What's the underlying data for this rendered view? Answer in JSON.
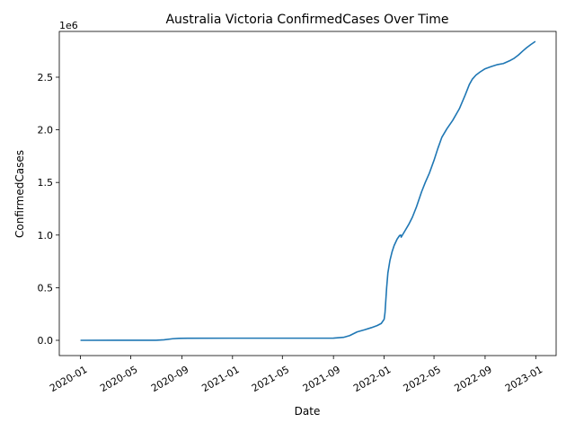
{
  "chart_data": {
    "type": "line",
    "title": "Australia Victoria ConfirmedCases Over Time",
    "xlabel": "Date",
    "ylabel": "ConfirmedCases",
    "y_offset_label": "1e6",
    "grid": false,
    "legend": "none",
    "ylim": [
      -0.145,
      2.935
    ],
    "xlim": [
      "2019-11-11",
      "2023-02-19"
    ],
    "x_ticks": [
      "2020-01",
      "2020-05",
      "2020-09",
      "2021-01",
      "2021-05",
      "2021-09",
      "2022-01",
      "2022-05",
      "2022-09",
      "2023-01"
    ],
    "y_ticks": [
      0.0,
      0.5,
      1.0,
      1.5,
      2.0,
      2.5
    ],
    "y_tick_labels": [
      "0.0",
      "0.5",
      "1.0",
      "1.5",
      "2.0",
      "2.5"
    ],
    "series": [
      {
        "color": "#1f77b4",
        "x": [
          "2020-01-01",
          "2020-07-01",
          "2020-07-20",
          "2020-08-10",
          "2020-08-25",
          "2020-09-15",
          "2021-09-01",
          "2021-09-25",
          "2021-10-10",
          "2021-10-28",
          "2021-11-15",
          "2021-12-01",
          "2021-12-15",
          "2021-12-25",
          "2022-01-01",
          "2022-01-03",
          "2022-01-05",
          "2022-01-07",
          "2022-01-10",
          "2022-01-15",
          "2022-01-20",
          "2022-01-25",
          "2022-02-01",
          "2022-02-07",
          "2022-02-10",
          "2022-02-11",
          "2022-02-20",
          "2022-03-01",
          "2022-03-10",
          "2022-03-20",
          "2022-04-01",
          "2022-04-10",
          "2022-04-20",
          "2022-05-01",
          "2022-05-10",
          "2022-05-20",
          "2022-06-01",
          "2022-06-15",
          "2022-07-01",
          "2022-07-15",
          "2022-07-25",
          "2022-08-01",
          "2022-08-10",
          "2022-08-20",
          "2022-09-01",
          "2022-09-15",
          "2022-10-01",
          "2022-10-15",
          "2022-11-01",
          "2022-11-10",
          "2022-11-20",
          "2022-12-01",
          "2022-12-10",
          "2022-12-20",
          "2022-12-31"
        ],
        "y": [
          0.0,
          0.001,
          0.005,
          0.015,
          0.019,
          0.02,
          0.021,
          0.028,
          0.045,
          0.08,
          0.1,
          0.12,
          0.14,
          0.16,
          0.2,
          0.26,
          0.38,
          0.5,
          0.64,
          0.76,
          0.84,
          0.9,
          0.96,
          0.995,
          1.0,
          0.98,
          1.04,
          1.1,
          1.17,
          1.27,
          1.41,
          1.5,
          1.59,
          1.71,
          1.82,
          1.93,
          2.01,
          2.09,
          2.2,
          2.33,
          2.43,
          2.48,
          2.52,
          2.55,
          2.58,
          2.6,
          2.62,
          2.63,
          2.66,
          2.68,
          2.71,
          2.75,
          2.78,
          2.81,
          2.84
        ]
      }
    ]
  }
}
